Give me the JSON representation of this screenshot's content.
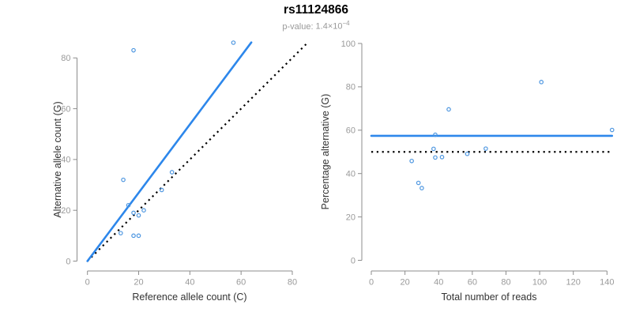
{
  "header": {
    "title": "rs11124866",
    "p_label": "p-value:",
    "p_value_base": "1.4×10",
    "p_value_exponent": "−4"
  },
  "colors": {
    "fit_blue": "#2D87EB",
    "point_blue": "#4D96E0",
    "dotted_black": "#000000",
    "axis_gray": "#8C8C8C",
    "tick_label_gray": "#9A9A9A",
    "axis_title_gray": "#333333",
    "subtitle_gray": "#999999",
    "background": "#FFFFFF"
  },
  "chart_data": [
    {
      "type": "scatter",
      "xlabel": "Reference allele count (C)",
      "ylabel": "Alternative allele count (G)",
      "xticks": [
        0,
        20,
        40,
        60,
        80
      ],
      "yticks": [
        0,
        20,
        40,
        60,
        80
      ],
      "xlim": [
        0,
        86
      ],
      "ylim": [
        0,
        86
      ],
      "grid": false,
      "points": [
        [
          13,
          11
        ],
        [
          14,
          32
        ],
        [
          16,
          22
        ],
        [
          18,
          10
        ],
        [
          18,
          19
        ],
        [
          18,
          83
        ],
        [
          20,
          10
        ],
        [
          20,
          18
        ],
        [
          22,
          20
        ],
        [
          29,
          28
        ],
        [
          33,
          35
        ],
        [
          57,
          86
        ]
      ],
      "lines": [
        {
          "name": "identity-line",
          "style": "dotted",
          "color": "#000000",
          "x1": 0,
          "y1": 0,
          "x2": 86,
          "y2": 86
        },
        {
          "name": "fit-line",
          "style": "solid",
          "color": "#2D87EB",
          "x1": 0,
          "y1": 0,
          "x2": 64,
          "y2": 86.1
        }
      ]
    },
    {
      "type": "scatter",
      "xlabel": "Total number of reads",
      "ylabel": "Percentage alternative (G)",
      "xticks": [
        0,
        20,
        40,
        60,
        80,
        100,
        120,
        140
      ],
      "yticks": [
        0,
        20,
        40,
        60,
        80,
        100
      ],
      "xlim": [
        0,
        143
      ],
      "ylim": [
        0,
        100
      ],
      "grid": false,
      "points": [
        [
          24,
          45.8
        ],
        [
          28,
          35.7
        ],
        [
          30,
          33.3
        ],
        [
          37,
          51.4
        ],
        [
          38,
          47.4
        ],
        [
          38,
          57.9
        ],
        [
          42,
          47.6
        ],
        [
          46,
          69.6
        ],
        [
          57,
          49.1
        ],
        [
          68,
          51.5
        ],
        [
          101,
          82.2
        ],
        [
          143,
          60.1
        ]
      ],
      "lines": [
        {
          "name": "null-line",
          "style": "dotted",
          "color": "#000000",
          "x1": 0,
          "y1": 50,
          "x2": 143,
          "y2": 50
        },
        {
          "name": "mean-line",
          "style": "solid",
          "color": "#2D87EB",
          "x1": 0,
          "y1": 57.4,
          "x2": 143,
          "y2": 57.4
        }
      ]
    }
  ]
}
